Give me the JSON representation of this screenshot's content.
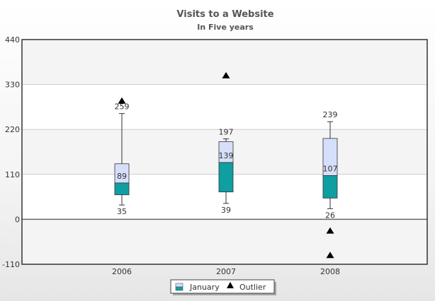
{
  "chart_data": {
    "type": "boxplot",
    "title": "Visits to a Website",
    "subtitle": "In Five years",
    "xlabel": "",
    "ylabel": "",
    "ylim": [
      -110,
      440
    ],
    "yticks": [
      -110,
      0,
      110,
      220,
      330,
      440
    ],
    "categories": [
      "2006",
      "2007",
      "2008"
    ],
    "series": [
      {
        "name": "January",
        "boxes": [
          {
            "min": 35,
            "q1": 60,
            "median": 89,
            "q3": 136,
            "max": 259
          },
          {
            "min": 39,
            "q1": 67,
            "median": 139,
            "q3": 190,
            "max": 197
          },
          {
            "min": 26,
            "q1": 52,
            "median": 107,
            "q3": 198,
            "max": 239
          }
        ],
        "labels": {
          "min": [
            "35",
            "39",
            "26"
          ],
          "median": [
            "89",
            "139",
            "107"
          ],
          "max": [
            "259",
            "197",
            "239"
          ]
        }
      },
      {
        "name": "Outlier",
        "points": [
          {
            "category": "2006",
            "value": 290
          },
          {
            "category": "2007",
            "value": 352
          },
          {
            "category": "2008",
            "value": -28
          },
          {
            "category": "2008",
            "value": -88
          }
        ]
      }
    ],
    "grid": true,
    "legend_position": "bottom",
    "colors": {
      "upper_box": "#d6dffa",
      "lower_box": "#0f9ea1",
      "box_border": "#333333",
      "outlier": "#000000",
      "plot_bg": "#ffffff",
      "band": "#f4f4f4",
      "grid": "#cccccc"
    }
  }
}
